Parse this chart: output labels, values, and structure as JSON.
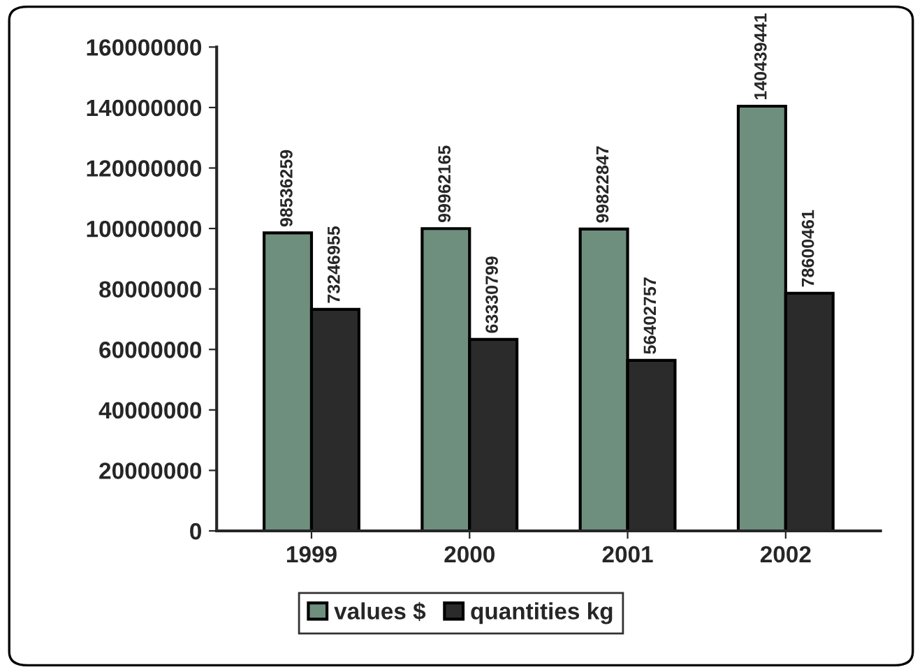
{
  "chart_data": {
    "type": "bar",
    "categories": [
      "1999",
      "2000",
      "2001",
      "2002"
    ],
    "series": [
      {
        "name": "values $",
        "color": "#6f8f7e",
        "values": [
          98536259,
          99962165,
          99822847,
          140439441
        ]
      },
      {
        "name": "quantities kg",
        "color": "#2b2b2b",
        "values": [
          73246955,
          63330799,
          56402757,
          78600461
        ]
      }
    ],
    "ylim": [
      0,
      160000000
    ],
    "yticks": [
      0,
      20000000,
      40000000,
      60000000,
      80000000,
      100000000,
      120000000,
      140000000,
      160000000
    ],
    "data_labels": true,
    "grid": false,
    "legend": "bottom"
  }
}
